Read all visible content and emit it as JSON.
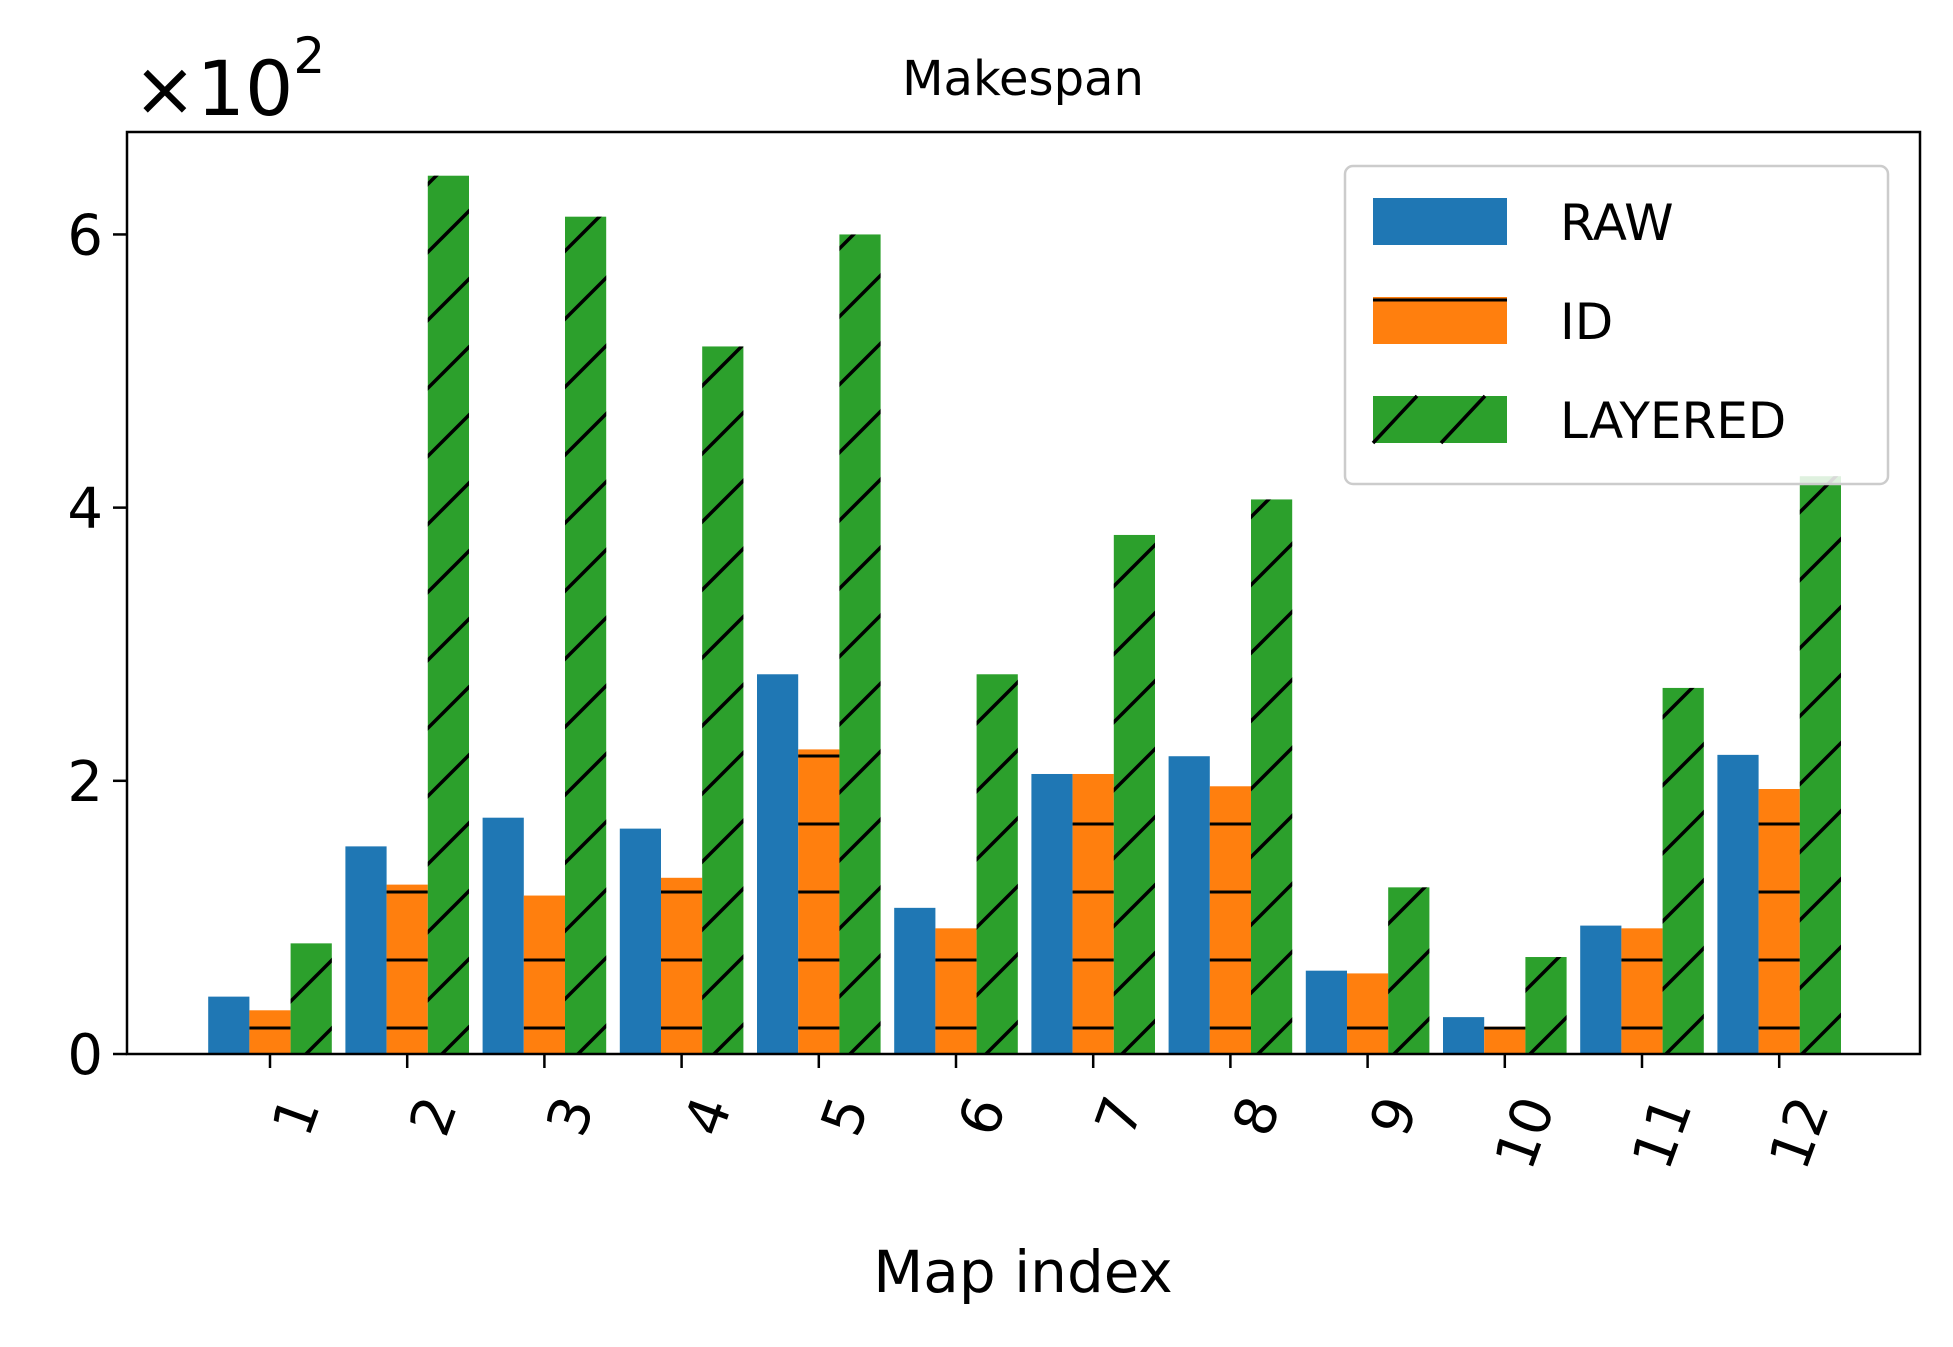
{
  "chart_data": {
    "type": "bar",
    "title": "Makespan",
    "xlabel": "Map index",
    "ylabel": "",
    "y_scale_label": "×10",
    "y_scale_exponent": "2",
    "categories": [
      "1",
      "2",
      "3",
      "4",
      "5",
      "6",
      "7",
      "8",
      "9",
      "10",
      "11",
      "12"
    ],
    "ylim": [
      0,
      6.75
    ],
    "yticks": [
      0,
      2,
      4,
      6
    ],
    "ytick_labels": [
      "0",
      "2",
      "4",
      "6"
    ],
    "legend_position": "top-right",
    "grid": false,
    "series": [
      {
        "name": "RAW",
        "color": "#1f77b4",
        "hatch": "none",
        "values": [
          0.42,
          1.52,
          1.73,
          1.65,
          2.78,
          1.07,
          2.05,
          2.18,
          0.61,
          0.27,
          0.94,
          2.19
        ]
      },
      {
        "name": "ID",
        "color": "#ff7f0e",
        "hatch": "horizontal",
        "values": [
          0.32,
          1.24,
          1.16,
          1.29,
          2.23,
          0.92,
          2.05,
          1.96,
          0.59,
          0.2,
          0.92,
          1.94
        ]
      },
      {
        "name": "LAYERED",
        "color": "#2ca02c",
        "hatch": "diagonal",
        "values": [
          0.81,
          6.43,
          6.13,
          5.18,
          6.0,
          2.78,
          3.8,
          4.06,
          1.22,
          0.71,
          2.68,
          4.23
        ]
      }
    ]
  }
}
